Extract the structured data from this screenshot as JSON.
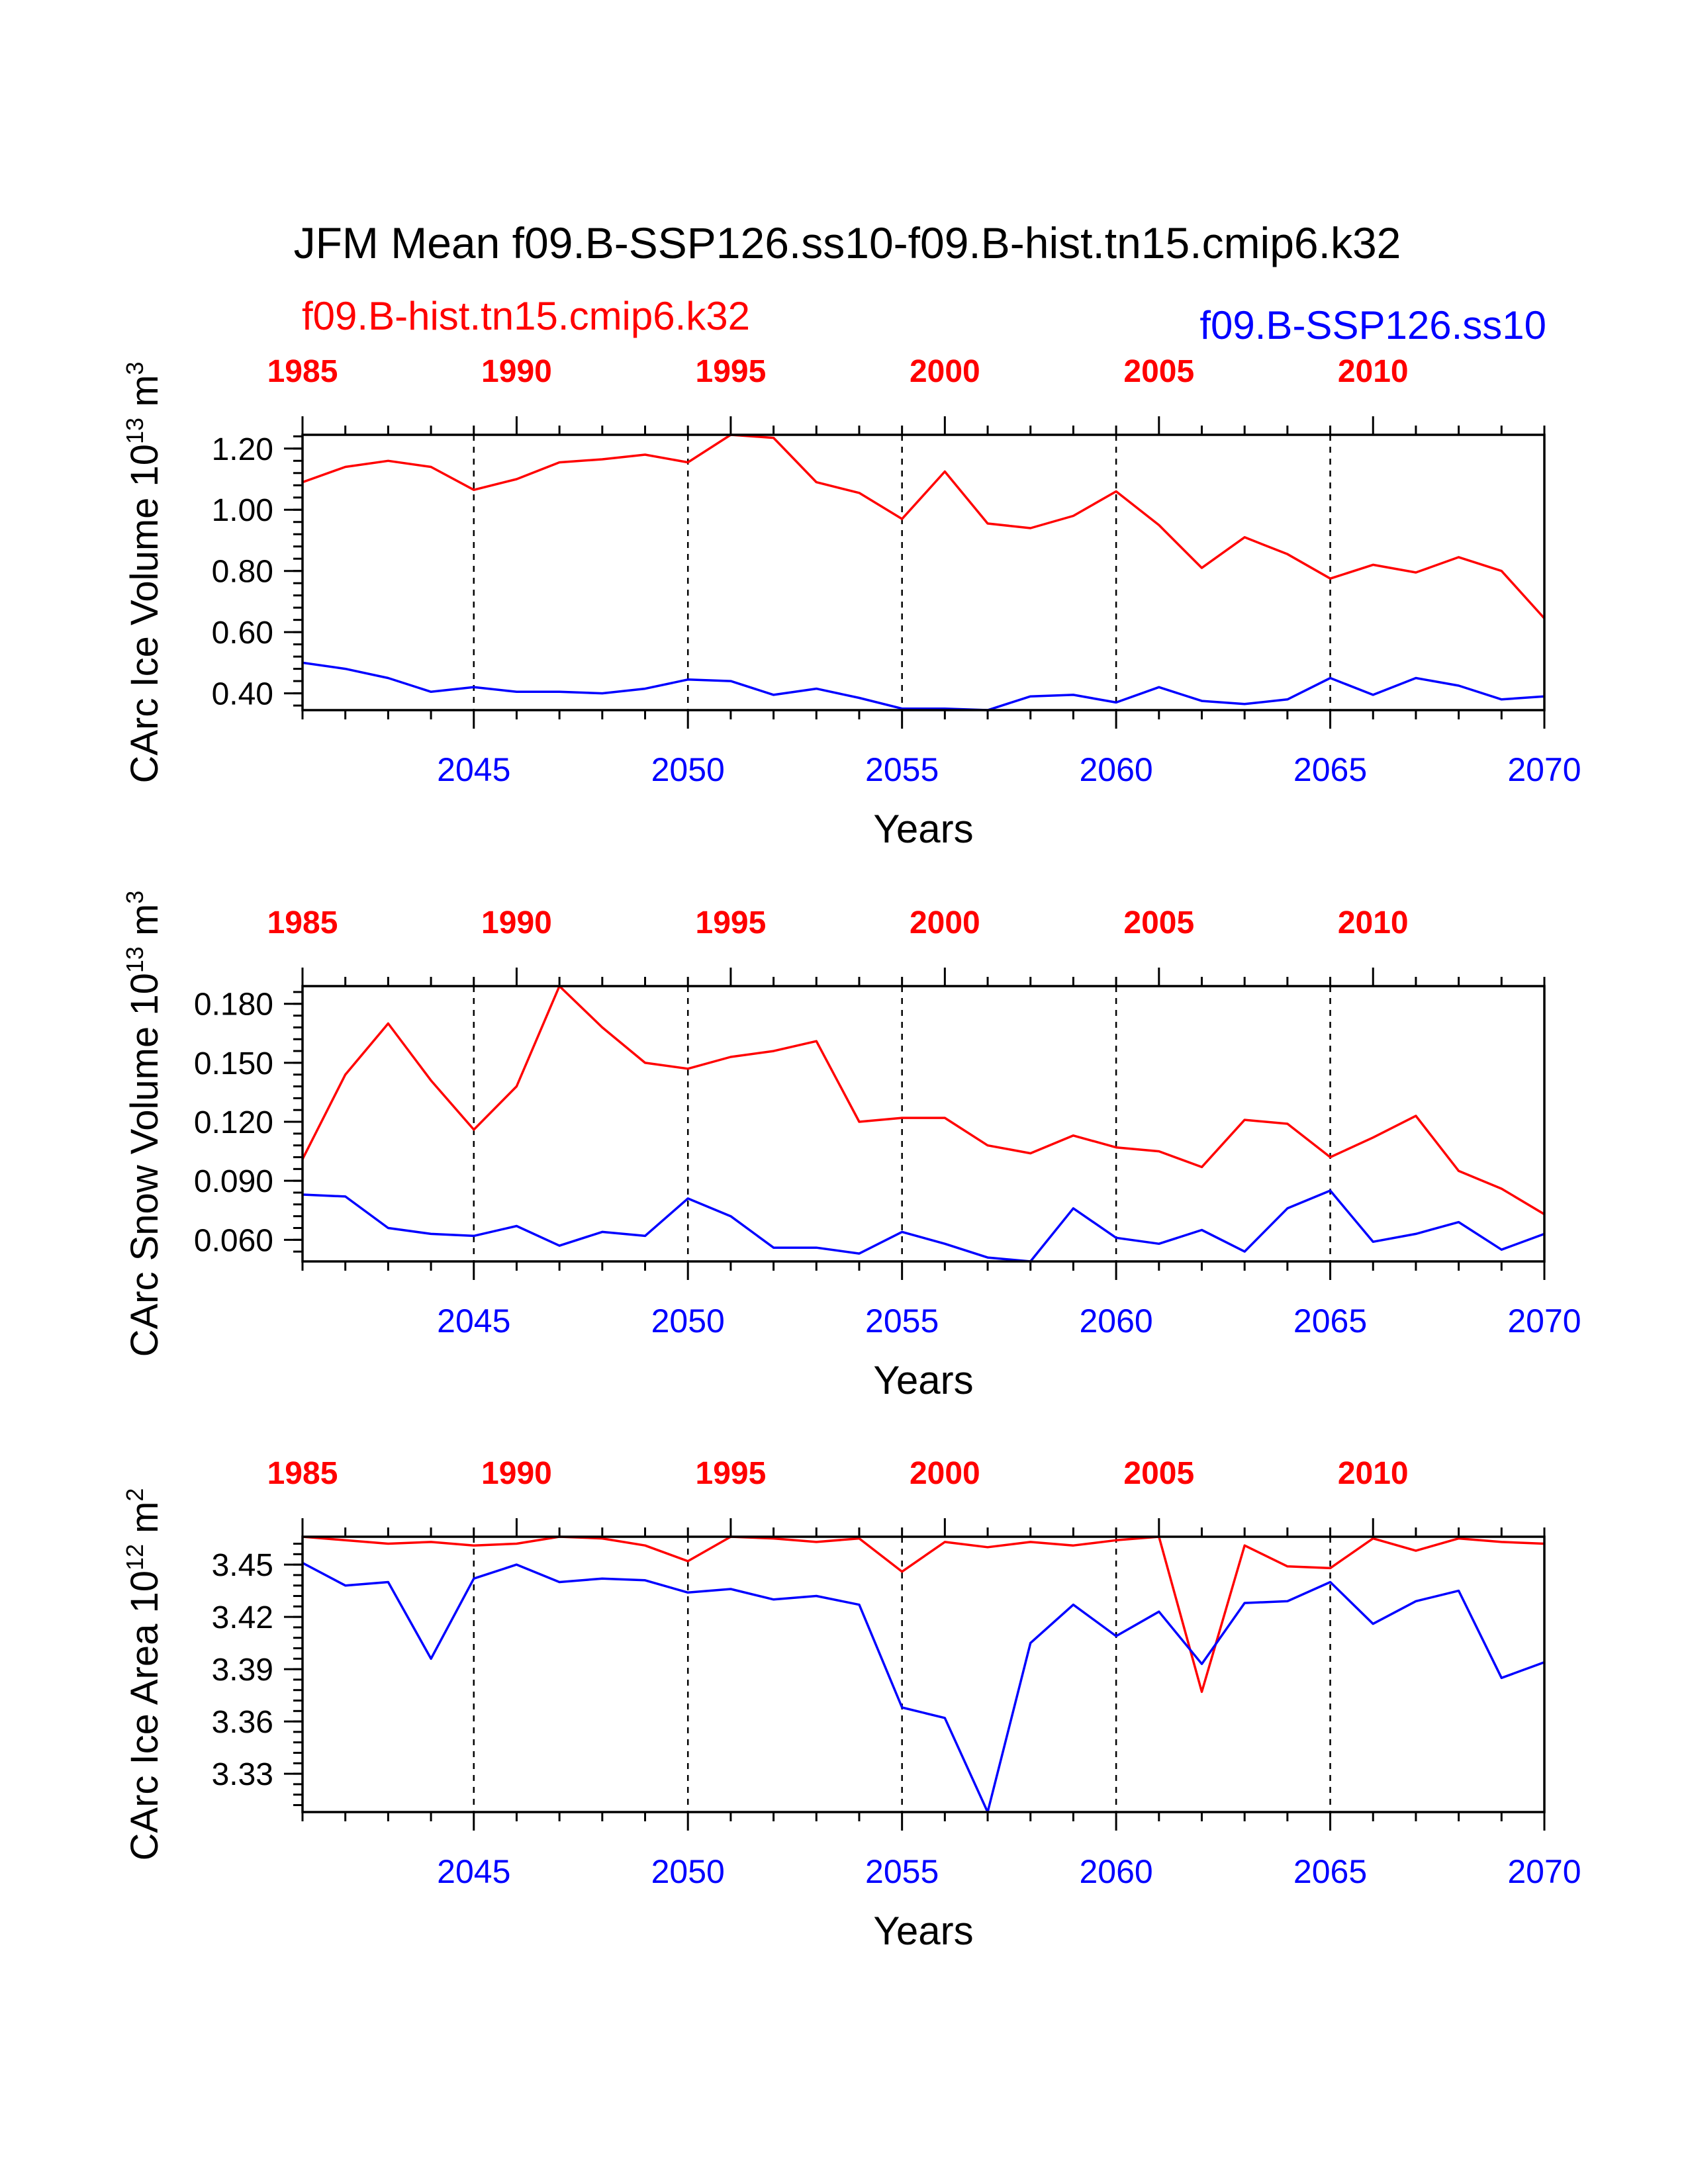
{
  "title": "JFM Mean f09.B-SSP126.ss10-f09.B-hist.tn15.cmip6.k32",
  "legend": {
    "hist_label": "f09.B-hist.tn15.cmip6.k32",
    "ssp_label": "f09.B-SSP126.ss10"
  },
  "colors": {
    "hist": "#ff0000",
    "ssp": "#0000ff",
    "axis": "#000000"
  },
  "chart_data": [
    {
      "type": "line",
      "ylabel_main": "CArc Ice Volume 10",
      "ylabel_sup": "13",
      "ylabel_unit": " m",
      "ylabel_unit_sup": "3",
      "xlabel": "Years",
      "ylim": [
        0.345,
        1.245
      ],
      "yticks": [
        "0.40",
        "0.60",
        "0.80",
        "1.00",
        "1.20"
      ],
      "ytick_values": [
        0.4,
        0.6,
        0.8,
        1.0,
        1.2
      ],
      "yminor_step": 0.04,
      "grid_vertical_dashed": true,
      "bottom_axis": {
        "range": [
          2041,
          2070
        ],
        "ticks": [
          "2045",
          "2050",
          "2055",
          "2060",
          "2065",
          "2070"
        ]
      },
      "top_axis": {
        "range": [
          1985,
          2014
        ],
        "ticks": [
          "1985",
          "1990",
          "1995",
          "2000",
          "2005",
          "2010"
        ]
      },
      "series": [
        {
          "name": "f09.B-hist.tn15.cmip6.k32",
          "axis": "top",
          "color": "#ff0000",
          "x": [
            1985,
            1986,
            1987,
            1988,
            1989,
            1990,
            1991,
            1992,
            1993,
            1994,
            1995,
            1996,
            1997,
            1998,
            1999,
            2000,
            2001,
            2002,
            2003,
            2004,
            2005,
            2006,
            2007,
            2008,
            2009,
            2010,
            2011,
            2012,
            2013,
            2014
          ],
          "values": [
            1.09,
            1.14,
            1.16,
            1.14,
            1.065,
            1.1,
            1.155,
            1.165,
            1.18,
            1.155,
            1.245,
            1.235,
            1.09,
            1.055,
            0.97,
            1.125,
            0.955,
            0.94,
            0.98,
            1.06,
            0.95,
            0.81,
            0.91,
            0.855,
            0.775,
            0.82,
            0.795,
            0.845,
            0.8,
            0.645
          ]
        },
        {
          "name": "f09.B-SSP126.ss10",
          "axis": "bottom",
          "color": "#0000ff",
          "x": [
            2041,
            2042,
            2043,
            2044,
            2045,
            2046,
            2047,
            2048,
            2049,
            2050,
            2051,
            2052,
            2053,
            2054,
            2055,
            2056,
            2057,
            2058,
            2059,
            2060,
            2061,
            2062,
            2063,
            2064,
            2065,
            2066,
            2067,
            2068,
            2069,
            2070
          ],
          "values": [
            0.5,
            0.48,
            0.45,
            0.405,
            0.42,
            0.405,
            0.405,
            0.4,
            0.415,
            0.445,
            0.44,
            0.395,
            0.415,
            0.385,
            0.35,
            0.35,
            0.345,
            0.39,
            0.395,
            0.37,
            0.42,
            0.375,
            0.365,
            0.38,
            0.45,
            0.395,
            0.45,
            0.425,
            0.38,
            0.39
          ]
        }
      ]
    },
    {
      "type": "line",
      "ylabel_main": "CArc Snow Volume 10",
      "ylabel_sup": "13",
      "ylabel_unit": " m",
      "ylabel_unit_sup": "3",
      "xlabel": "Years",
      "ylim": [
        0.049,
        0.189
      ],
      "yticks": [
        "0.060",
        "0.090",
        "0.120",
        "0.150",
        "0.180"
      ],
      "ytick_values": [
        0.06,
        0.09,
        0.12,
        0.15,
        0.18
      ],
      "yminor_step": 0.006,
      "grid_vertical_dashed": true,
      "bottom_axis": {
        "range": [
          2041,
          2070
        ],
        "ticks": [
          "2045",
          "2050",
          "2055",
          "2060",
          "2065",
          "2070"
        ]
      },
      "top_axis": {
        "range": [
          1985,
          2014
        ],
        "ticks": [
          "1985",
          "1990",
          "1995",
          "2000",
          "2005",
          "2010"
        ]
      },
      "series": [
        {
          "name": "f09.B-hist.tn15.cmip6.k32",
          "axis": "top",
          "color": "#ff0000",
          "x": [
            1985,
            1986,
            1987,
            1988,
            1989,
            1990,
            1991,
            1992,
            1993,
            1994,
            1995,
            1996,
            1997,
            1998,
            1999,
            2000,
            2001,
            2002,
            2003,
            2004,
            2005,
            2006,
            2007,
            2008,
            2009,
            2010,
            2011,
            2012,
            2013,
            2014
          ],
          "values": [
            0.101,
            0.144,
            0.17,
            0.141,
            0.116,
            0.138,
            0.189,
            0.168,
            0.15,
            0.147,
            0.153,
            0.156,
            0.161,
            0.12,
            0.122,
            0.122,
            0.108,
            0.104,
            0.113,
            0.107,
            0.105,
            0.097,
            0.121,
            0.119,
            0.102,
            0.112,
            0.123,
            0.095,
            0.086,
            0.073
          ]
        },
        {
          "name": "f09.B-SSP126.ss10",
          "axis": "bottom",
          "color": "#0000ff",
          "x": [
            2041,
            2042,
            2043,
            2044,
            2045,
            2046,
            2047,
            2048,
            2049,
            2050,
            2051,
            2052,
            2053,
            2054,
            2055,
            2056,
            2057,
            2058,
            2059,
            2060,
            2061,
            2062,
            2063,
            2064,
            2065,
            2066,
            2067,
            2068,
            2069,
            2070
          ],
          "values": [
            0.083,
            0.082,
            0.066,
            0.063,
            0.062,
            0.067,
            0.057,
            0.064,
            0.062,
            0.081,
            0.072,
            0.056,
            0.056,
            0.053,
            0.064,
            0.058,
            0.051,
            0.049,
            0.076,
            0.061,
            0.058,
            0.065,
            0.054,
            0.076,
            0.085,
            0.059,
            0.063,
            0.069,
            0.055,
            0.063
          ]
        }
      ]
    },
    {
      "type": "line",
      "ylabel_main": "CArc Ice Area 10",
      "ylabel_sup": "12",
      "ylabel_unit": " m",
      "ylabel_unit_sup": "2",
      "xlabel": "Years",
      "ylim": [
        3.308,
        3.466
      ],
      "yticks": [
        "3.33",
        "3.36",
        "3.39",
        "3.42",
        "3.45"
      ],
      "ytick_values": [
        3.33,
        3.36,
        3.39,
        3.42,
        3.45
      ],
      "yminor_step": 0.006,
      "grid_vertical_dashed": true,
      "bottom_axis": {
        "range": [
          2041,
          2070
        ],
        "ticks": [
          "2045",
          "2050",
          "2055",
          "2060",
          "2065",
          "2070"
        ]
      },
      "top_axis": {
        "range": [
          1985,
          2014
        ],
        "ticks": [
          "1985",
          "1990",
          "1995",
          "2000",
          "2005",
          "2010"
        ]
      },
      "series": [
        {
          "name": "f09.B-hist.tn15.cmip6.k32",
          "axis": "top",
          "color": "#ff0000",
          "x": [
            1985,
            1986,
            1987,
            1988,
            1989,
            1990,
            1991,
            1992,
            1993,
            1994,
            1995,
            1996,
            1997,
            1998,
            1999,
            2000,
            2001,
            2002,
            2003,
            2004,
            2005,
            2006,
            2007,
            2008,
            2009,
            2010,
            2011,
            2012,
            2013,
            2014
          ],
          "values": [
            3.466,
            3.464,
            3.462,
            3.463,
            3.461,
            3.462,
            3.466,
            3.465,
            3.461,
            3.452,
            3.466,
            3.465,
            3.463,
            3.465,
            3.446,
            3.463,
            3.46,
            3.463,
            3.461,
            3.464,
            3.466,
            3.377,
            3.461,
            3.449,
            3.448,
            3.465,
            3.458,
            3.465,
            3.463,
            3.462
          ]
        },
        {
          "name": "f09.B-SSP126.ss10",
          "axis": "bottom",
          "color": "#0000ff",
          "x": [
            2041,
            2042,
            2043,
            2044,
            2045,
            2046,
            2047,
            2048,
            2049,
            2050,
            2051,
            2052,
            2053,
            2054,
            2055,
            2056,
            2057,
            2058,
            2059,
            2060,
            2061,
            2062,
            2063,
            2064,
            2065,
            2066,
            2067,
            2068,
            2069,
            2070
          ],
          "values": [
            3.451,
            3.438,
            3.44,
            3.396,
            3.442,
            3.45,
            3.44,
            3.442,
            3.441,
            3.434,
            3.436,
            3.43,
            3.432,
            3.427,
            3.368,
            3.362,
            3.308,
            3.405,
            3.427,
            3.409,
            3.423,
            3.393,
            3.428,
            3.429,
            3.44,
            3.416,
            3.429,
            3.435,
            3.385,
            3.394
          ]
        }
      ]
    }
  ]
}
